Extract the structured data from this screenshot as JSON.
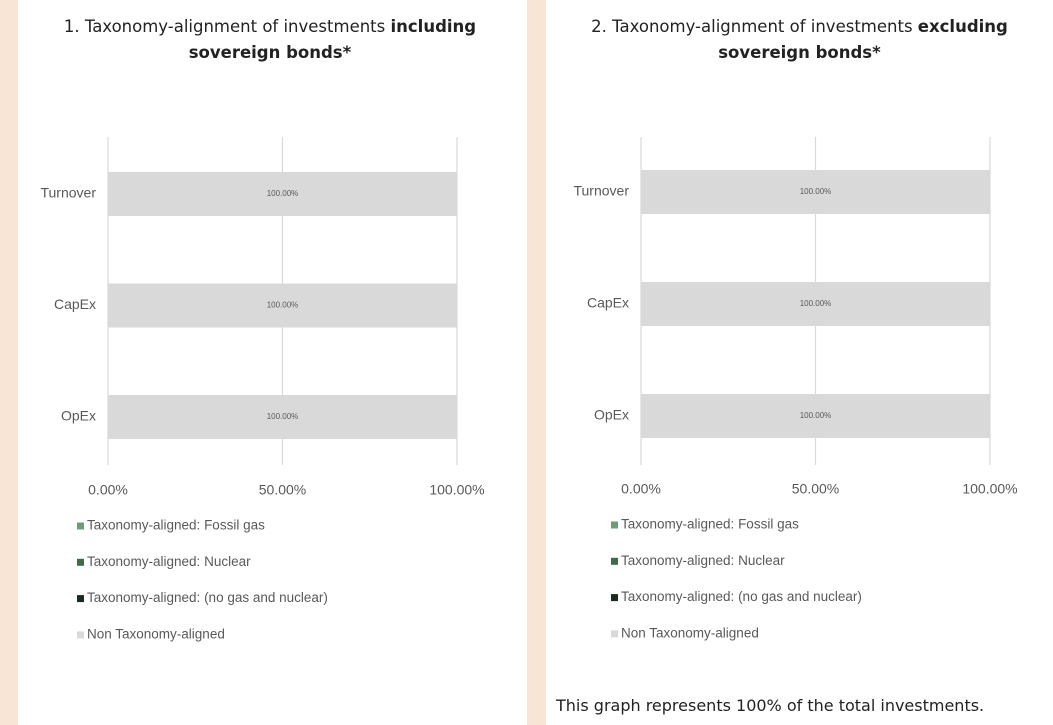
{
  "charts_footnote": "This graph represents 100% of the total investments.",
  "chart_data": [
    {
      "type": "bar",
      "orientation": "horizontal",
      "stacked": true,
      "title": "1. Taxonomy-alignment of investments",
      "title_emphasis": "including sovereign bonds*",
      "categories": [
        "Turnover",
        "CapEx",
        "OpEx"
      ],
      "series": [
        {
          "name": "Taxonomy-aligned: Fossil gas",
          "color": "#6e9c78",
          "values": [
            0,
            0,
            0
          ]
        },
        {
          "name": "Taxonomy-aligned: Nuclear",
          "color": "#3f6b47",
          "values": [
            0,
            0,
            0
          ]
        },
        {
          "name": "Taxonomy-aligned: (no gas and nuclear)",
          "color": "#1b2b20",
          "values": [
            0,
            0,
            0
          ]
        },
        {
          "name": "Non Taxonomy-aligned",
          "color": "#d9d9d9",
          "values": [
            100,
            100,
            100
          ],
          "value_labels": [
            "100.00%",
            "100.00%",
            "100.00%"
          ]
        }
      ],
      "xlim": [
        0,
        100
      ],
      "xticks": [
        {
          "value": 0,
          "label": "0.00%"
        },
        {
          "value": 50,
          "label": "50.00%"
        },
        {
          "value": 100,
          "label": "100.00%"
        }
      ],
      "grid": true,
      "legend": "bottom"
    },
    {
      "type": "bar",
      "orientation": "horizontal",
      "stacked": true,
      "title": "2. Taxonomy-alignment of investments",
      "title_emphasis": "excluding sovereign bonds*",
      "categories": [
        "Turnover",
        "CapEx",
        "OpEx"
      ],
      "series": [
        {
          "name": "Taxonomy-aligned: Fossil gas",
          "color": "#6e9c78",
          "values": [
            0,
            0,
            0
          ]
        },
        {
          "name": "Taxonomy-aligned: Nuclear",
          "color": "#3f6b47",
          "values": [
            0,
            0,
            0
          ]
        },
        {
          "name": "Taxonomy-aligned: (no gas and nuclear)",
          "color": "#1b2b20",
          "values": [
            0,
            0,
            0
          ]
        },
        {
          "name": "Non Taxonomy-aligned",
          "color": "#d9d9d9",
          "values": [
            100,
            100,
            100
          ],
          "value_labels": [
            "100.00%",
            "100.00%",
            "100.00%"
          ]
        }
      ],
      "xlim": [
        0,
        100
      ],
      "xticks": [
        {
          "value": 0,
          "label": "0.00%"
        },
        {
          "value": 50,
          "label": "50.00%"
        },
        {
          "value": 100,
          "label": "100.00%"
        }
      ],
      "grid": true,
      "legend": "bottom"
    }
  ]
}
